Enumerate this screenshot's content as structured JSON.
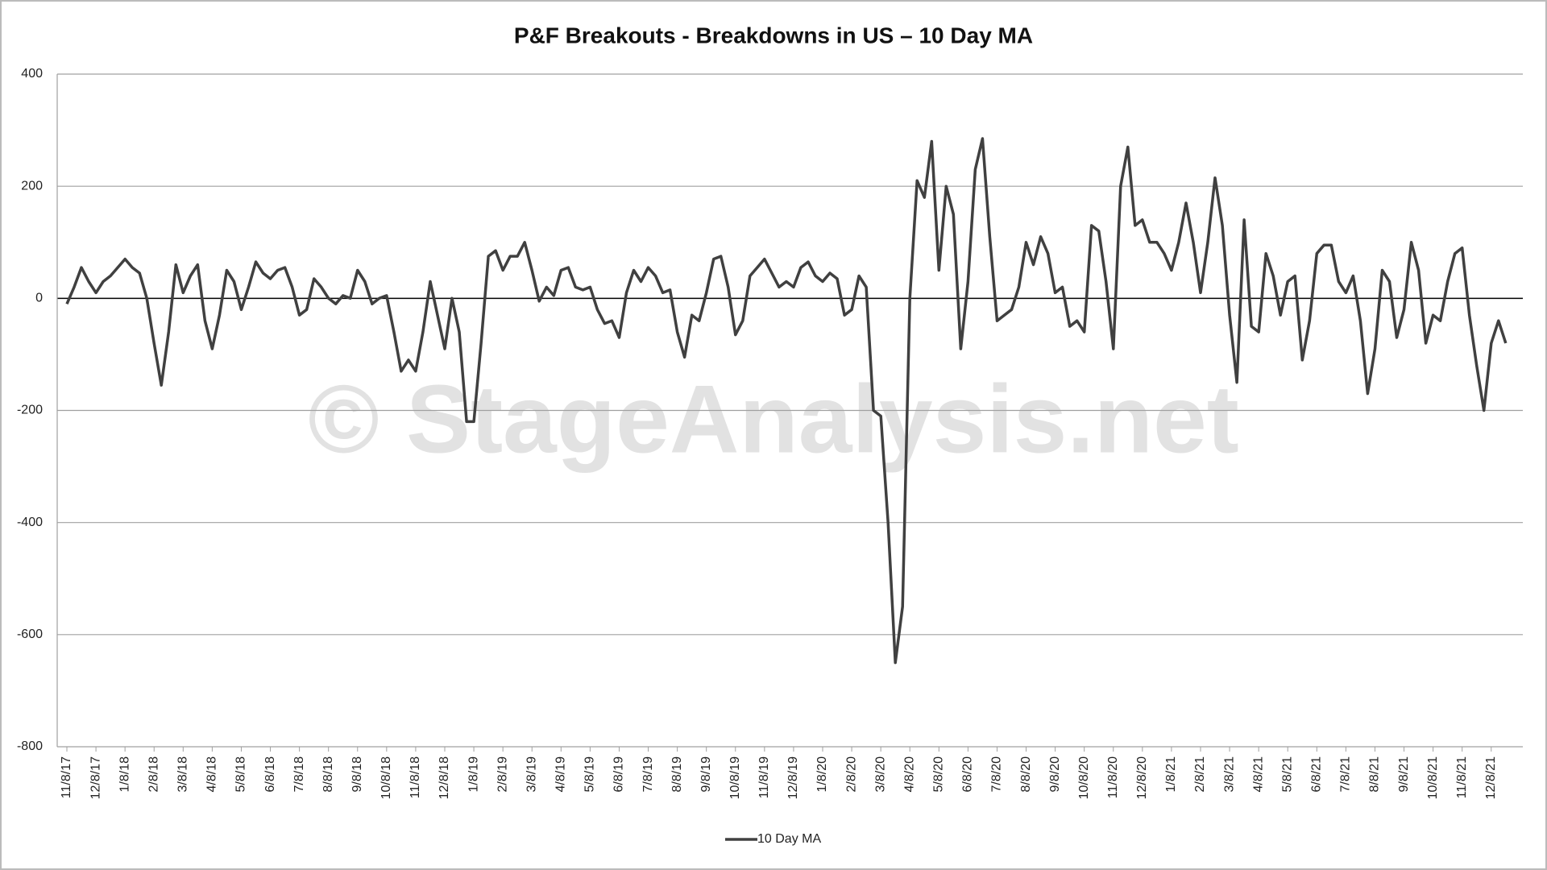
{
  "chart_data": {
    "type": "line",
    "title": "P&F Breakouts - Breakdowns in US – 10 Day MA",
    "watermark": "© StageAnalysis.net",
    "categories": [
      "11/8/17",
      null,
      null,
      null,
      "12/8/17",
      null,
      null,
      null,
      "1/8/18",
      null,
      null,
      null,
      "2/8/18",
      null,
      null,
      null,
      "3/8/18",
      null,
      null,
      null,
      "4/8/18",
      null,
      null,
      null,
      "5/8/18",
      null,
      null,
      null,
      "6/8/18",
      null,
      null,
      null,
      "7/8/18",
      null,
      null,
      null,
      "8/8/18",
      null,
      null,
      null,
      "9/8/18",
      null,
      null,
      null,
      "10/8/18",
      null,
      null,
      null,
      "11/8/18",
      null,
      null,
      null,
      "12/8/18",
      null,
      null,
      null,
      "1/8/19",
      null,
      null,
      null,
      "2/8/19",
      null,
      null,
      null,
      "3/8/19",
      null,
      null,
      null,
      "4/8/19",
      null,
      null,
      null,
      "5/8/19",
      null,
      null,
      null,
      "6/8/19",
      null,
      null,
      null,
      "7/8/19",
      null,
      null,
      null,
      "8/8/19",
      null,
      null,
      null,
      "9/8/19",
      null,
      null,
      null,
      "10/8/19",
      null,
      null,
      null,
      "11/8/19",
      null,
      null,
      null,
      "12/8/19",
      null,
      null,
      null,
      "1/8/20",
      null,
      null,
      null,
      "2/8/20",
      null,
      null,
      null,
      "3/8/20",
      null,
      null,
      null,
      "4/8/20",
      null,
      null,
      null,
      "5/8/20",
      null,
      null,
      null,
      "6/8/20",
      null,
      null,
      null,
      "7/8/20",
      null,
      null,
      null,
      "8/8/20",
      null,
      null,
      null,
      "9/8/20",
      null,
      null,
      null,
      "10/8/20",
      null,
      null,
      null,
      "11/8/20",
      null,
      null,
      null,
      "12/8/20",
      null,
      null,
      null,
      "1/8/21",
      null,
      null,
      null,
      "2/8/21",
      null,
      null,
      null,
      "3/8/21",
      null,
      null,
      null,
      "4/8/21",
      null,
      null,
      null,
      "5/8/21",
      null,
      null,
      null,
      "6/8/21",
      null,
      null,
      null,
      "7/8/21",
      null,
      null,
      null,
      "8/8/21",
      null,
      null,
      null,
      "9/8/21",
      null,
      null,
      null,
      "10/8/21",
      null,
      null,
      null,
      "11/8/21",
      null,
      null,
      null,
      "12/8/21",
      null,
      null
    ],
    "series": [
      {
        "name": "10 Day MA",
        "color": "#404040",
        "values": [
          -10,
          20,
          55,
          30,
          10,
          30,
          40,
          55,
          70,
          55,
          45,
          0,
          -80,
          -155,
          -60,
          60,
          10,
          40,
          60,
          -40,
          -90,
          -30,
          50,
          30,
          -20,
          20,
          65,
          45,
          35,
          50,
          55,
          20,
          -30,
          -20,
          35,
          20,
          0,
          -10,
          5,
          0,
          50,
          30,
          -10,
          0,
          5,
          -60,
          -130,
          -110,
          -130,
          -60,
          30,
          -30,
          -90,
          0,
          -60,
          -220,
          -220,
          -80,
          75,
          85,
          50,
          75,
          75,
          100,
          50,
          -5,
          20,
          5,
          50,
          55,
          20,
          15,
          20,
          -20,
          -45,
          -40,
          -70,
          10,
          50,
          30,
          55,
          40,
          10,
          15,
          -60,
          -105,
          -30,
          -40,
          10,
          70,
          75,
          20,
          -65,
          -40,
          40,
          55,
          70,
          45,
          20,
          30,
          20,
          55,
          65,
          40,
          30,
          45,
          35,
          -30,
          -20,
          40,
          20,
          -200,
          -210,
          -400,
          -650,
          -550,
          0,
          210,
          180,
          280,
          50,
          200,
          150,
          -90,
          30,
          230,
          285,
          110,
          -40,
          -30,
          -20,
          20,
          100,
          60,
          110,
          80,
          10,
          20,
          -50,
          -40,
          -60,
          130,
          120,
          30,
          -90,
          200,
          270,
          130,
          140,
          100,
          100,
          80,
          50,
          100,
          170,
          100,
          10,
          100,
          215,
          130,
          -30,
          -150,
          140,
          -50,
          -60,
          80,
          40,
          -30,
          30,
          40,
          -110,
          -40,
          80,
          95,
          95,
          30,
          10,
          40,
          -40,
          -170,
          -90,
          50,
          30,
          -70,
          -20,
          100,
          50,
          -80,
          -30,
          -40,
          30,
          80,
          90,
          -30,
          -120,
          -200,
          -80,
          -40,
          -80
        ]
      }
    ],
    "ylim": [
      -800,
      400
    ],
    "yticks": [
      -800,
      -600,
      -400,
      -200,
      0,
      200,
      400
    ],
    "grid": true,
    "legend": "bottom"
  }
}
